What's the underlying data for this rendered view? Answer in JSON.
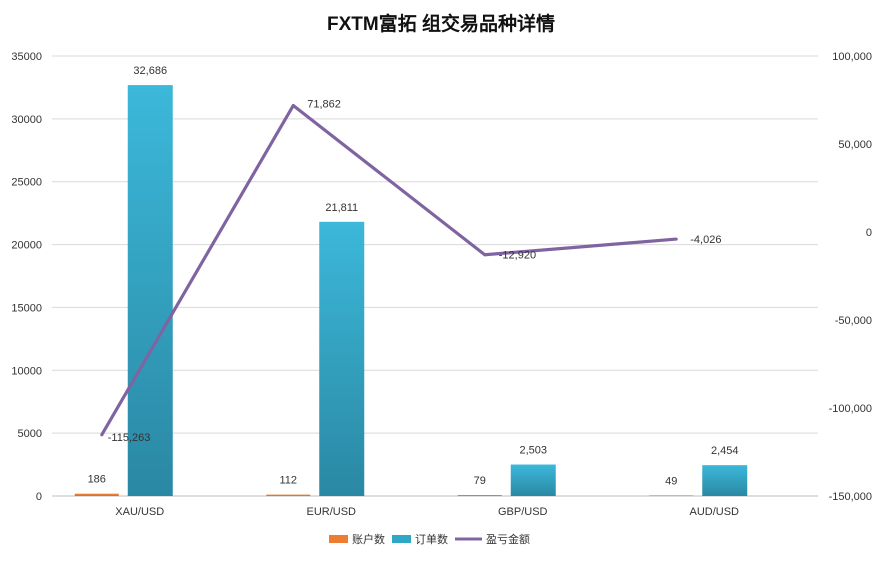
{
  "chart_data": {
    "type": "bar",
    "title": "FXTM富拓 组交易品种详情",
    "categories": [
      "XAU/USD",
      "EUR/USD",
      "GBP/USD",
      "AUD/USD"
    ],
    "series": [
      {
        "name": "账户数",
        "kind": "bar",
        "axis": "left",
        "color": "#ED7D31",
        "values": [
          186,
          112,
          79,
          49
        ],
        "labels": [
          "186",
          "112",
          "79",
          "49"
        ]
      },
      {
        "name": "订单数",
        "kind": "bar",
        "axis": "left",
        "color": "#2FA8C8",
        "values": [
          32686,
          21811,
          2503,
          2454
        ],
        "labels": [
          "32,686",
          "21,811",
          "2,503",
          "2,454"
        ]
      },
      {
        "name": "盈亏金额",
        "kind": "line",
        "axis": "right",
        "color": "#8064A2",
        "values": [
          -115263,
          71862,
          -12920,
          -4026
        ],
        "labels": [
          "-115,263",
          "71,862",
          "-12,920",
          "-4,026"
        ]
      }
    ],
    "left_axis": {
      "min": 0,
      "max": 35000,
      "ticks": [
        "0",
        "5000",
        "10000",
        "15000",
        "20000",
        "25000",
        "30000",
        "35000"
      ]
    },
    "right_axis": {
      "min": -150000,
      "max": 100000,
      "ticks": [
        "-150,000",
        "-100,000",
        "-50,000",
        "0",
        "50,000",
        "100,000"
      ]
    },
    "grid": true,
    "legend_position": "bottom"
  }
}
